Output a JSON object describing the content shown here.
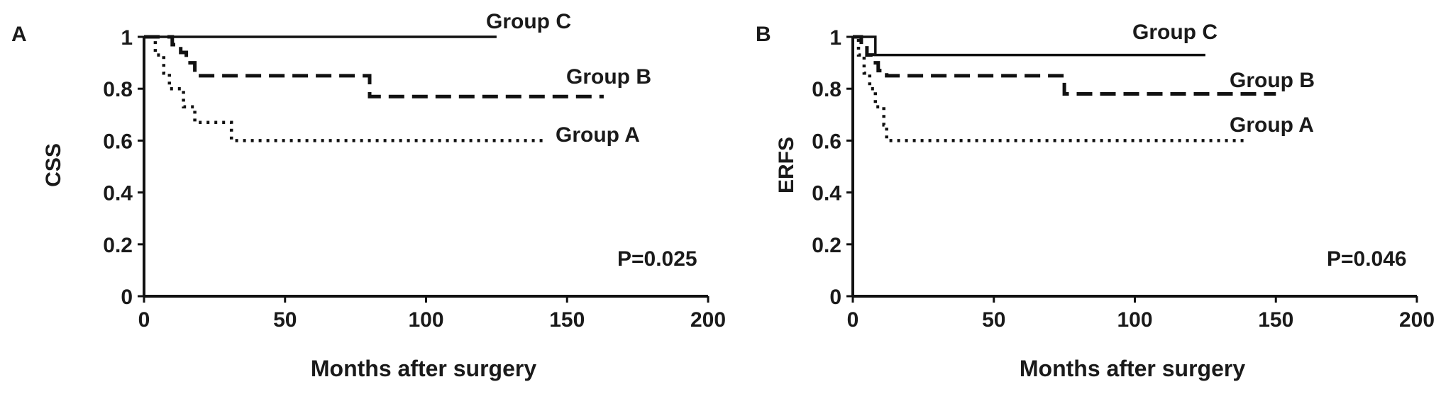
{
  "chart_data": [
    {
      "panel_label": "A",
      "type": "line",
      "step": true,
      "xlabel": "Months after surgery",
      "ylabel": "CSS",
      "xlim": [
        0,
        200
      ],
      "ylim": [
        0,
        1
      ],
      "xticks": [
        "0",
        "50",
        "100",
        "150",
        "200"
      ],
      "yticks": [
        "0",
        "0.2",
        "0.4",
        "0.6",
        "0.8",
        "1"
      ],
      "annotation": "P=0.025",
      "series": [
        {
          "name": "Group C",
          "style": "solid",
          "points": [
            [
              0,
              1
            ],
            [
              125,
              1
            ]
          ]
        },
        {
          "name": "Group B",
          "style": "dashed",
          "points": [
            [
              0,
              1
            ],
            [
              10,
              1
            ],
            [
              10,
              0.97
            ],
            [
              13,
              0.97
            ],
            [
              13,
              0.94
            ],
            [
              15,
              0.94
            ],
            [
              15,
              0.9
            ],
            [
              18,
              0.9
            ],
            [
              18,
              0.85
            ],
            [
              80,
              0.85
            ],
            [
              80,
              0.77
            ],
            [
              163,
              0.77
            ]
          ]
        },
        {
          "name": "Group A",
          "style": "dotted",
          "points": [
            [
              0,
              1
            ],
            [
              4,
              1
            ],
            [
              4,
              0.93
            ],
            [
              7,
              0.93
            ],
            [
              7,
              0.86
            ],
            [
              9,
              0.86
            ],
            [
              9,
              0.8
            ],
            [
              14,
              0.8
            ],
            [
              14,
              0.73
            ],
            [
              18,
              0.73
            ],
            [
              18,
              0.67
            ],
            [
              31,
              0.67
            ],
            [
              31,
              0.6
            ],
            [
              142,
              0.6
            ]
          ]
        }
      ]
    },
    {
      "panel_label": "B",
      "type": "line",
      "step": true,
      "xlabel": "Months after surgery",
      "ylabel": "ERFS",
      "xlim": [
        0,
        200
      ],
      "ylim": [
        0,
        1
      ],
      "xticks": [
        "0",
        "50",
        "100",
        "150",
        "200"
      ],
      "yticks": [
        "0",
        "0.2",
        "0.4",
        "0.6",
        "0.8",
        "1"
      ],
      "annotation": "P=0.046",
      "series": [
        {
          "name": "Group C",
          "style": "solid",
          "points": [
            [
              0,
              1
            ],
            [
              8,
              1
            ],
            [
              8,
              0.93
            ],
            [
              125,
              0.93
            ]
          ]
        },
        {
          "name": "Group B",
          "style": "dashed",
          "points": [
            [
              0,
              1
            ],
            [
              3,
              1
            ],
            [
              3,
              0.97
            ],
            [
              5,
              0.97
            ],
            [
              5,
              0.93
            ],
            [
              7,
              0.93
            ],
            [
              7,
              0.9
            ],
            [
              9,
              0.9
            ],
            [
              9,
              0.87
            ],
            [
              12,
              0.87
            ],
            [
              12,
              0.85
            ],
            [
              75,
              0.85
            ],
            [
              75,
              0.78
            ],
            [
              150,
              0.78
            ]
          ]
        },
        {
          "name": "Group A",
          "style": "dotted",
          "points": [
            [
              0,
              1
            ],
            [
              2,
              1
            ],
            [
              2,
              0.93
            ],
            [
              4,
              0.93
            ],
            [
              4,
              0.86
            ],
            [
              6,
              0.86
            ],
            [
              6,
              0.8
            ],
            [
              8,
              0.8
            ],
            [
              8,
              0.73
            ],
            [
              11,
              0.73
            ],
            [
              11,
              0.66
            ],
            [
              12,
              0.66
            ],
            [
              12,
              0.6
            ],
            [
              140,
              0.6
            ]
          ]
        }
      ]
    }
  ]
}
